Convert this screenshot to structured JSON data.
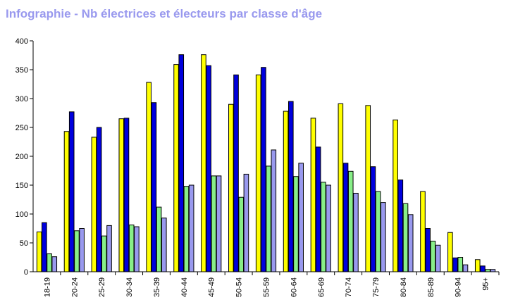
{
  "chart_data": {
    "type": "bar",
    "title": "Infographie - Nb électrices et électeurs par classe d'âge",
    "xlabel": "",
    "ylabel": "",
    "ylim": [
      0,
      400
    ],
    "yticks": [
      0,
      50,
      100,
      150,
      200,
      250,
      300,
      350,
      400
    ],
    "grid": false,
    "legend": "none",
    "categories": [
      "18-19",
      "20-24",
      "25-29",
      "30-34",
      "35-39",
      "40-44",
      "45-49",
      "50-54",
      "55-59",
      "60-64",
      "65-69",
      "70-74",
      "75-79",
      "80-84",
      "85-89",
      "90-94",
      "95+"
    ],
    "series": [
      {
        "color": "#ffff00",
        "values": [
          69,
          243,
          233,
          265,
          328,
          359,
          376,
          290,
          341,
          278,
          266,
          291,
          288,
          263,
          139,
          68,
          21
        ]
      },
      {
        "color": "#0000dd",
        "values": [
          85,
          277,
          250,
          266,
          293,
          376,
          357,
          341,
          354,
          295,
          216,
          188,
          182,
          159,
          75,
          24,
          10
        ]
      },
      {
        "color": "#88ee88",
        "values": [
          31,
          71,
          62,
          81,
          112,
          148,
          166,
          129,
          183,
          165,
          155,
          174,
          139,
          118,
          53,
          25,
          4
        ]
      },
      {
        "color": "#9999ee",
        "values": [
          26,
          75,
          80,
          78,
          93,
          150,
          166,
          169,
          211,
          188,
          150,
          136,
          120,
          99,
          46,
          12,
          4
        ]
      }
    ]
  }
}
